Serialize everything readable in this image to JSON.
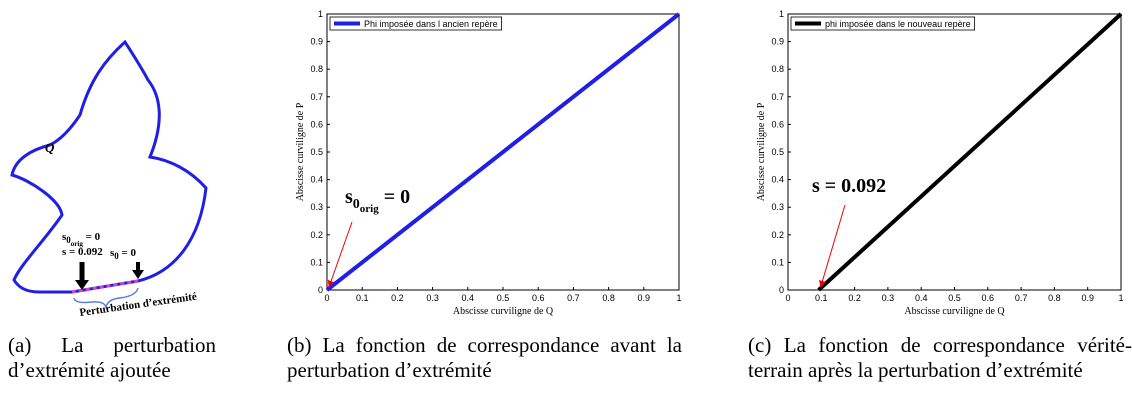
{
  "panel_a": {
    "curve_label": "Q",
    "s0orig": {
      "base": "s",
      "sub": "0",
      "subsub": "orig",
      "rest": " = 0"
    },
    "s_value": "s = 0.092",
    "s0": {
      "base": "s",
      "sub": "0",
      "rest": " = 0"
    },
    "perturbation": "Perturbation d’extrémité",
    "caption": "(a) La perturbation d’extrémité ajoutée"
  },
  "chart_data": [
    {
      "type": "line",
      "x": [
        0,
        1
      ],
      "series": [
        {
          "name": "Phi imposée dans l ancien repère",
          "color": "#1f1fe6",
          "values": [
            0,
            1
          ]
        }
      ],
      "xlabel": "Abscisse curviligne de Q",
      "ylabel": "Abscisse curviligne de P",
      "xlim": [
        0,
        1
      ],
      "ylim": [
        0,
        1
      ],
      "xticks": [
        0,
        0.1,
        0.2,
        0.3,
        0.4,
        0.5,
        0.6,
        0.7,
        0.8,
        0.9,
        1
      ],
      "yticks": [
        0,
        0.1,
        0.2,
        0.3,
        0.4,
        0.5,
        0.6,
        0.7,
        0.8,
        0.9,
        1
      ],
      "legend": "upper left",
      "annotation": {
        "base": "s",
        "sub": "0",
        "subsub": "orig",
        "rest": " = 0"
      },
      "caption": "(b) La fonction de correspondance avant la perturbation d’extrémité"
    },
    {
      "type": "line",
      "x": [
        0.092,
        1
      ],
      "series": [
        {
          "name": "phi imposée dans le nouveau repère",
          "color": "#000000",
          "values": [
            0,
            1
          ]
        }
      ],
      "xlabel": "Abscisse curviligne de Q",
      "ylabel": "Abscisse curviligne de P",
      "xlim": [
        0,
        1
      ],
      "ylim": [
        0,
        1
      ],
      "xticks": [
        0,
        0.1,
        0.2,
        0.3,
        0.4,
        0.5,
        0.6,
        0.7,
        0.8,
        0.9,
        1
      ],
      "yticks": [
        0,
        0.1,
        0.2,
        0.3,
        0.4,
        0.5,
        0.6,
        0.7,
        0.8,
        0.9,
        1
      ],
      "legend": "upper left",
      "annotation": {
        "base": "s = 0.092"
      },
      "caption": "(c) La fonction de correspondance vérité-terrain après la perturbation d’extrémité"
    }
  ]
}
